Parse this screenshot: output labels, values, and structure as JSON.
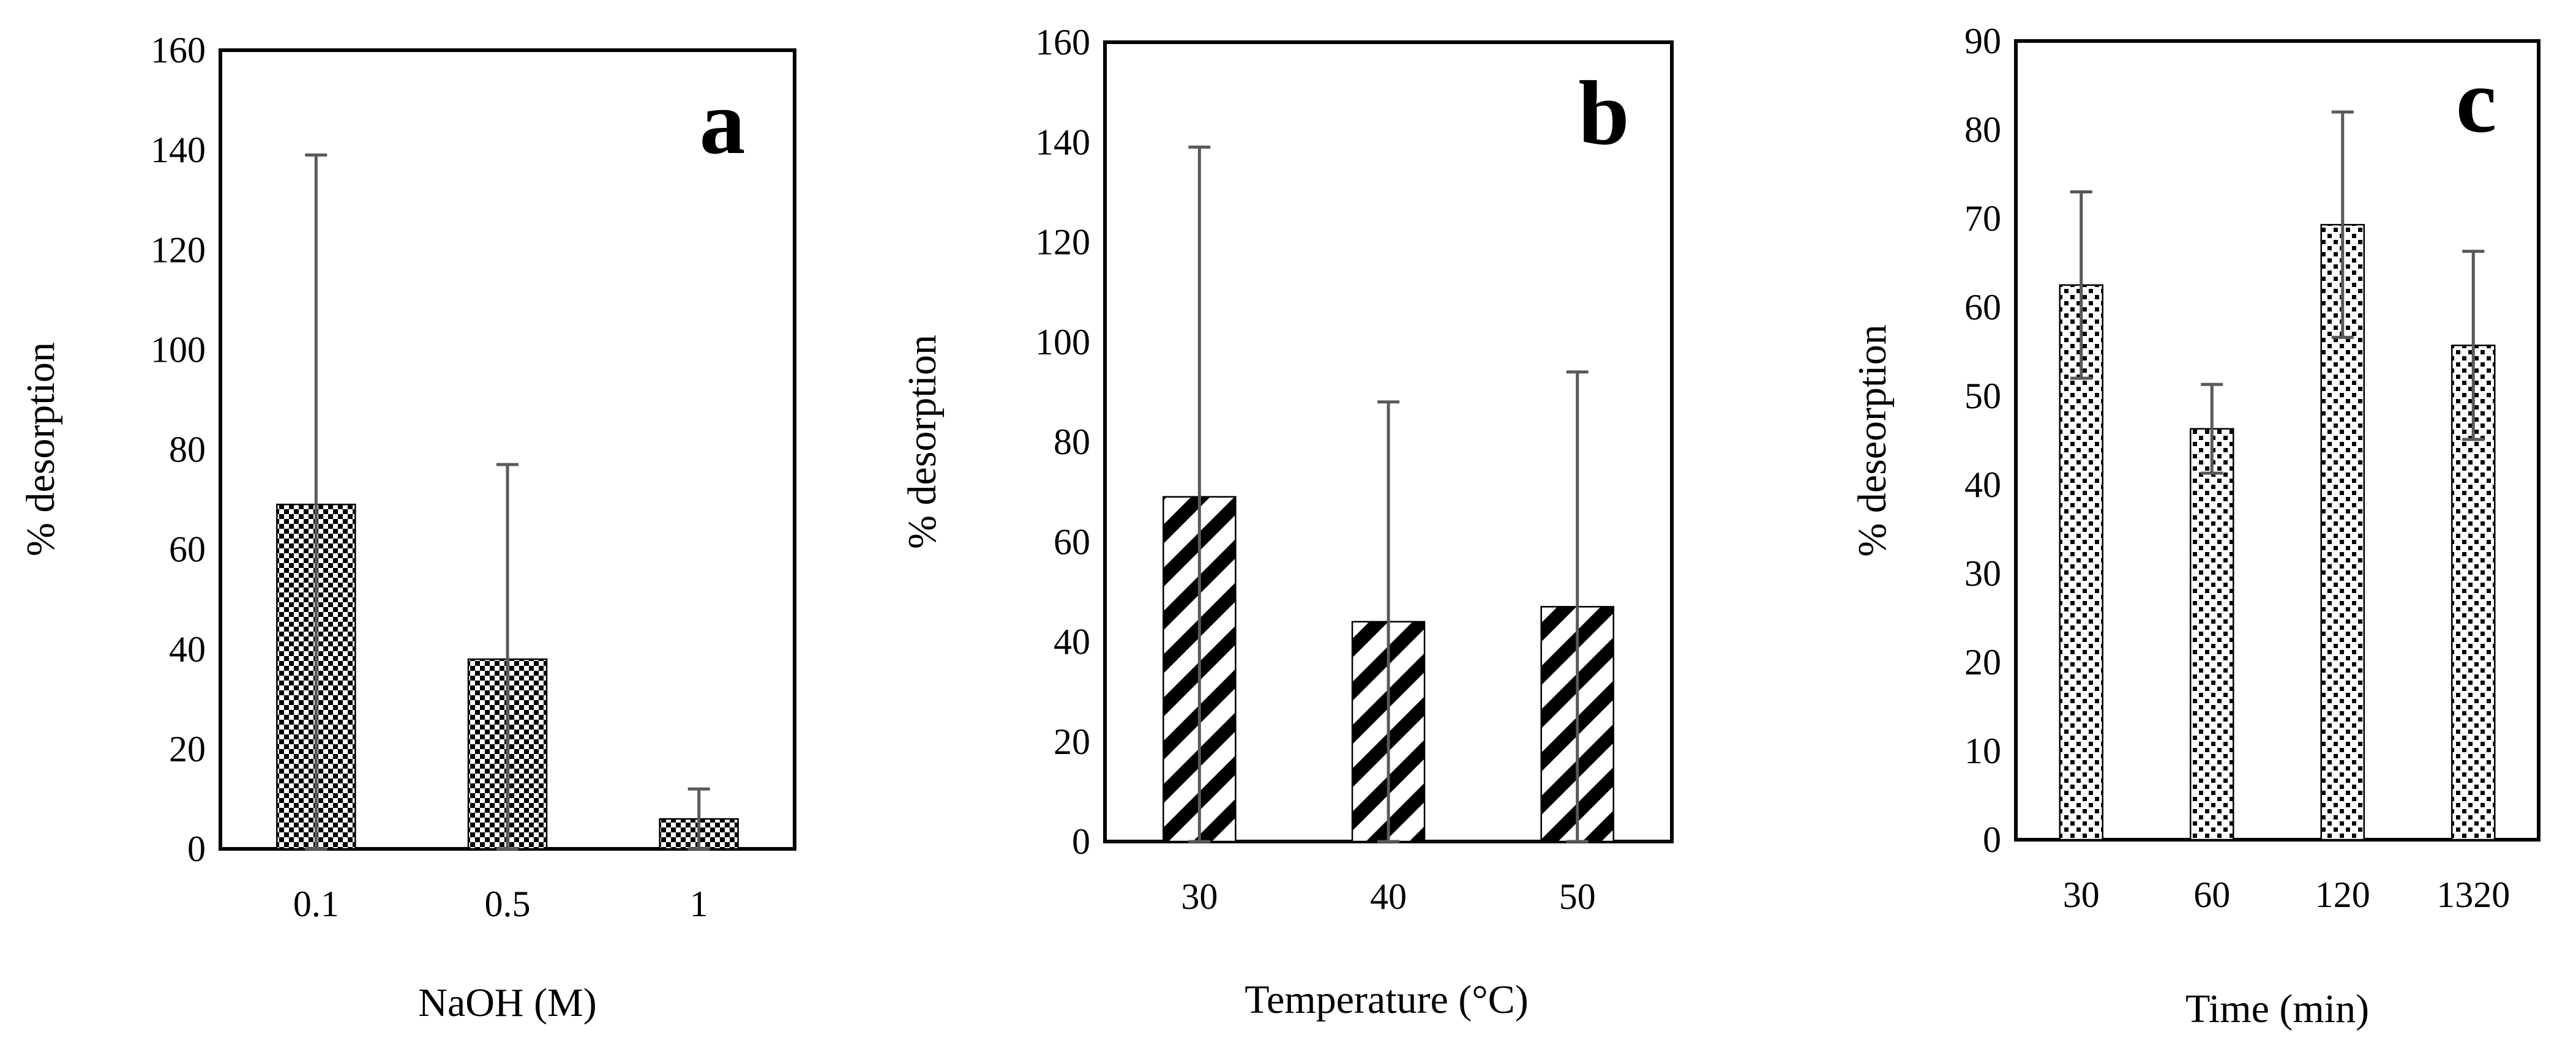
{
  "colors": {
    "ink": "#000000",
    "error_bar": "#595959",
    "background": "#ffffff"
  },
  "chart_data": [
    {
      "type": "bar",
      "panel_label": "a",
      "pattern": "checkerboard",
      "categories": [
        "0.1",
        "0.5",
        "1"
      ],
      "values": [
        69,
        38,
        6
      ],
      "errors": [
        70,
        39,
        6
      ],
      "xlabel": "NaOH (M)",
      "ylabel": "% desorption",
      "ylim": [
        0,
        160
      ],
      "yticks": [
        "0",
        "20",
        "40",
        "60",
        "80",
        "100",
        "120",
        "140",
        "160"
      ],
      "grid": false
    },
    {
      "type": "bar",
      "panel_label": "b",
      "pattern": "diagonal-stripes",
      "categories": [
        "30",
        "40",
        "50"
      ],
      "values": [
        69,
        44,
        47
      ],
      "errors": [
        70,
        44,
        47
      ],
      "xlabel": "Temperature (°C)",
      "ylabel": "% desorption",
      "ylim": [
        0,
        160
      ],
      "yticks": [
        "0",
        "20",
        "40",
        "60",
        "80",
        "100",
        "120",
        "140",
        "160"
      ],
      "grid": false
    },
    {
      "type": "bar",
      "panel_label": "c",
      "pattern": "dots",
      "categories": [
        "30",
        "60",
        "120",
        "1320"
      ],
      "values": [
        62.5,
        46.3,
        69.3,
        55.7
      ],
      "errors": [
        10.5,
        5,
        12.7,
        10.6
      ],
      "xlabel": "Time (min)",
      "ylabel": "% deseorption",
      "ylim": [
        0,
        90
      ],
      "yticks": [
        "0",
        "10",
        "20",
        "30",
        "40",
        "50",
        "60",
        "70",
        "80",
        "90"
      ],
      "grid": false
    }
  ]
}
